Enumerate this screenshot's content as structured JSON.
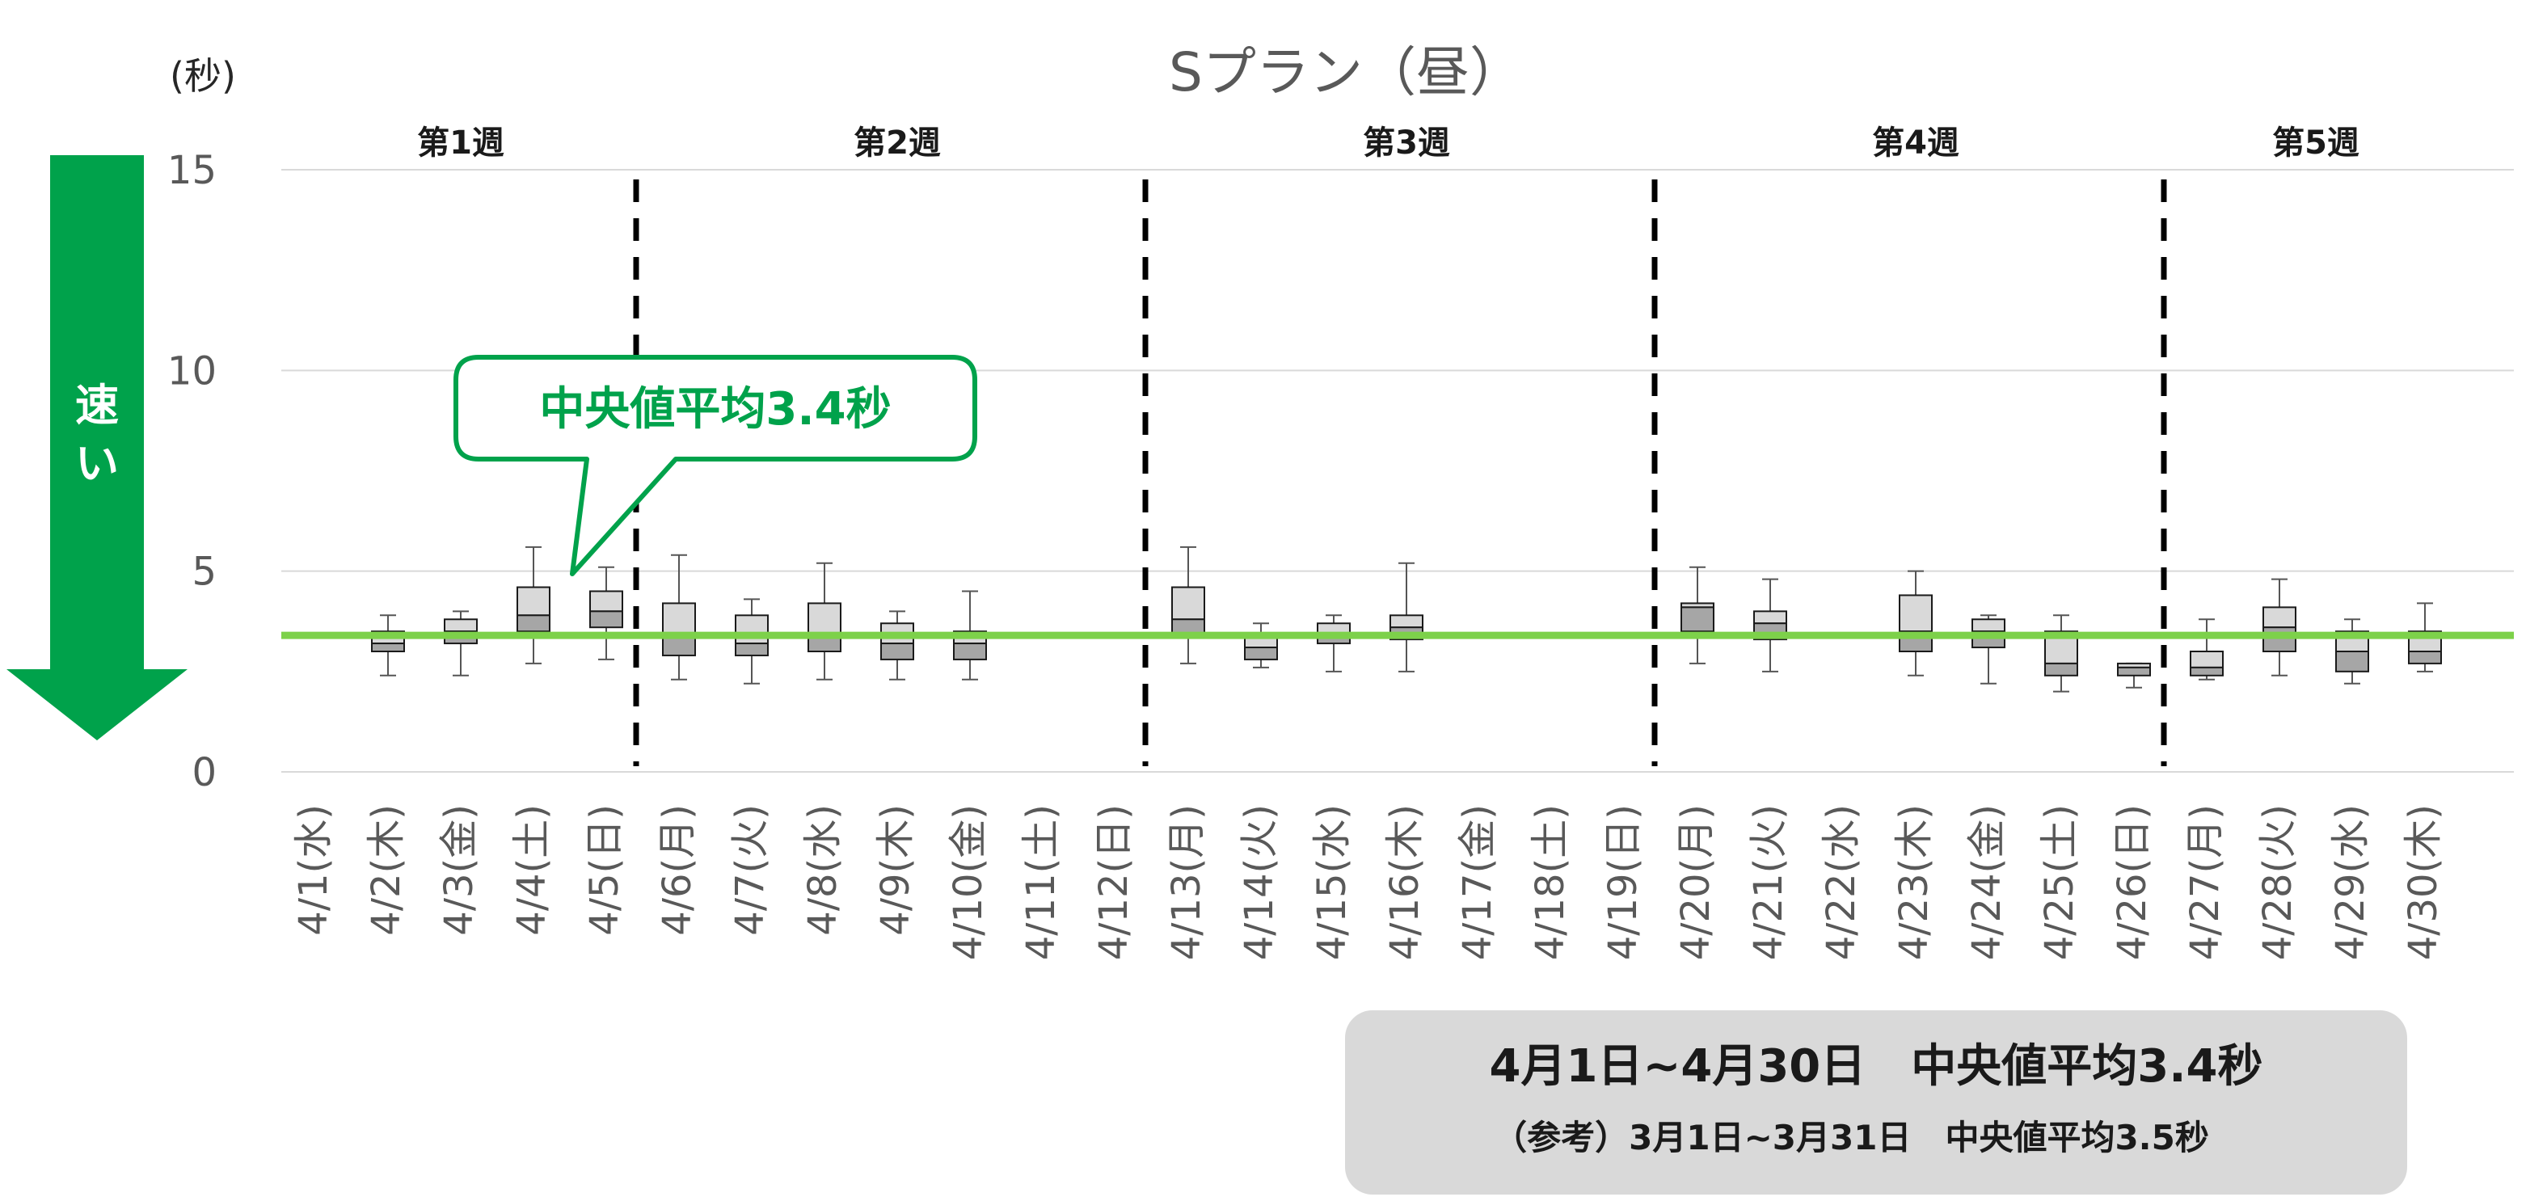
{
  "chart_data": {
    "type": "boxplot",
    "title": "Sプラン（昼）",
    "ylabel": "(秒)",
    "ylim": [
      0,
      15
    ],
    "yticks": [
      0,
      5,
      10,
      15
    ],
    "grid": true,
    "reference_line": {
      "value": 3.4,
      "color": "#7dd14a"
    },
    "weeks": [
      {
        "label": "第1週",
        "start": 0,
        "end": 4
      },
      {
        "label": "第2週",
        "start": 5,
        "end": 11
      },
      {
        "label": "第3週",
        "start": 12,
        "end": 18
      },
      {
        "label": "第4週",
        "start": 19,
        "end": 25
      },
      {
        "label": "第5週",
        "start": 26,
        "end": 29
      }
    ],
    "categories": [
      "4/1(水)",
      "4/2(木)",
      "4/3(金)",
      "4/4(土)",
      "4/5(日)",
      "4/6(月)",
      "4/7(火)",
      "4/8(水)",
      "4/9(木)",
      "4/10(金)",
      "4/11(土)",
      "4/12(日)",
      "4/13(月)",
      "4/14(火)",
      "4/15(水)",
      "4/16(木)",
      "4/17(金)",
      "4/18(土)",
      "4/19(日)",
      "4/20(月)",
      "4/21(火)",
      "4/22(水)",
      "4/23(木)",
      "4/24(金)",
      "4/25(土)",
      "4/26(日)",
      "4/27(月)",
      "4/28(火)",
      "4/29(水)",
      "4/30(木)"
    ],
    "boxes": [
      null,
      {
        "min": 2.4,
        "q1": 3.0,
        "median": 3.2,
        "q3": 3.5,
        "max": 3.9
      },
      {
        "min": 2.4,
        "q1": 3.2,
        "median": 3.5,
        "q3": 3.8,
        "max": 4.0
      },
      {
        "min": 2.7,
        "q1": 3.5,
        "median": 3.9,
        "q3": 4.6,
        "max": 5.6
      },
      {
        "min": 2.8,
        "q1": 3.6,
        "median": 4.0,
        "q3": 4.5,
        "max": 5.1
      },
      {
        "min": 2.3,
        "q1": 2.9,
        "median": 3.4,
        "q3": 4.2,
        "max": 5.4
      },
      {
        "min": 2.2,
        "q1": 2.9,
        "median": 3.2,
        "q3": 3.9,
        "max": 4.3
      },
      {
        "min": 2.3,
        "q1": 3.0,
        "median": 3.4,
        "q3": 4.2,
        "max": 5.2
      },
      {
        "min": 2.3,
        "q1": 2.8,
        "median": 3.2,
        "q3": 3.7,
        "max": 4.0
      },
      {
        "min": 2.3,
        "q1": 2.8,
        "median": 3.2,
        "q3": 3.5,
        "max": 4.5
      },
      null,
      null,
      {
        "min": 2.7,
        "q1": 3.4,
        "median": 3.8,
        "q3": 4.6,
        "max": 5.6
      },
      {
        "min": 2.6,
        "q1": 2.8,
        "median": 3.1,
        "q3": 3.4,
        "max": 3.7
      },
      {
        "min": 2.5,
        "q1": 3.2,
        "median": 3.4,
        "q3": 3.7,
        "max": 3.9
      },
      {
        "min": 2.5,
        "q1": 3.3,
        "median": 3.6,
        "q3": 3.9,
        "max": 5.2
      },
      null,
      null,
      null,
      {
        "min": 2.7,
        "q1": 3.5,
        "median": 4.1,
        "q3": 4.2,
        "max": 5.1
      },
      {
        "min": 2.5,
        "q1": 3.3,
        "median": 3.7,
        "q3": 4.0,
        "max": 4.8
      },
      null,
      {
        "min": 2.4,
        "q1": 3.0,
        "median": 3.5,
        "q3": 4.4,
        "max": 5.0
      },
      {
        "min": 2.2,
        "q1": 3.1,
        "median": 3.5,
        "q3": 3.8,
        "max": 3.9
      },
      {
        "min": 2.0,
        "q1": 2.4,
        "median": 2.7,
        "q3": 3.5,
        "max": 3.9
      },
      {
        "min": 2.1,
        "q1": 2.4,
        "median": 2.6,
        "q3": 2.7,
        "max": 2.7
      },
      {
        "min": 2.3,
        "q1": 2.4,
        "median": 2.6,
        "q3": 3.0,
        "max": 3.8
      },
      {
        "min": 2.4,
        "q1": 3.0,
        "median": 3.6,
        "q3": 4.1,
        "max": 4.8
      },
      {
        "min": 2.2,
        "q1": 2.5,
        "median": 3.0,
        "q3": 3.5,
        "max": 3.8
      },
      {
        "min": 2.5,
        "q1": 2.7,
        "median": 3.0,
        "q3": 3.5,
        "max": 4.2
      }
    ]
  },
  "callout": {
    "text": "中央値平均3.4秒"
  },
  "arrow": {
    "label_line1": "速",
    "label_line2": "い",
    "color": "#00a24b"
  },
  "summary": {
    "main": "4月1日~4月30日　中央値平均3.4秒",
    "sub": "（参考）3月1日~3月31日　中央値平均3.5秒"
  },
  "colors": {
    "box_upper": "#d9d9d9",
    "box_lower": "#a6a6a6",
    "box_stroke": "#1a1a1a",
    "grid": "#d9d9d9",
    "summary_bg": "#d9d9d9",
    "callout_stroke": "#00a24b"
  }
}
